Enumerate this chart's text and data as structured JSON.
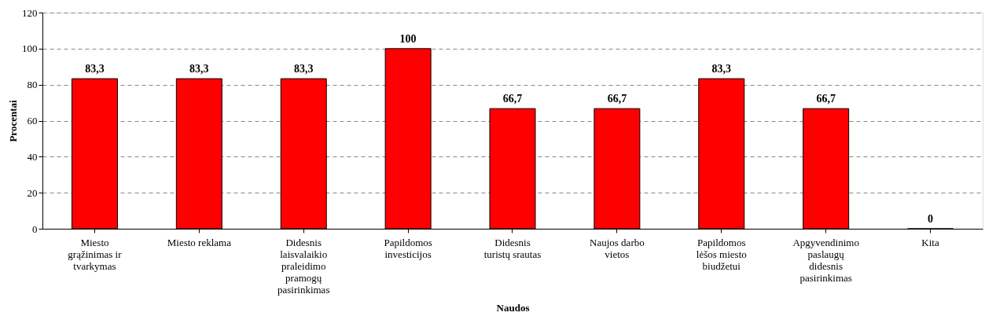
{
  "chart_data": {
    "type": "bar",
    "xlabel": "Naudos",
    "ylabel": "Procentai",
    "categories": [
      "Miesto grąžinimas ir tvarkymas",
      "Miesto reklama",
      "Didesnis laisvalaikio praleidimo pramogų pasirinkimas",
      "Papildomos investicijos",
      "Didesnis turistų srautas",
      "Naujos darbo vietos",
      "Papildomos lėšos miesto biudžetui",
      "Apgyvendinimo paslaugų didesnis pasirinkimas",
      "Kita"
    ],
    "values": [
      83.3,
      83.3,
      83.3,
      100,
      66.7,
      66.7,
      83.3,
      66.7,
      0
    ],
    "value_labels": [
      "83,3",
      "83,3",
      "83,3",
      "100",
      "66,7",
      "66,7",
      "83,3",
      "66,7",
      "0"
    ],
    "color": "#ff0000",
    "ylim": [
      0,
      120
    ],
    "yticks": [
      0,
      20,
      40,
      60,
      80,
      100,
      120
    ],
    "grid": "y"
  }
}
